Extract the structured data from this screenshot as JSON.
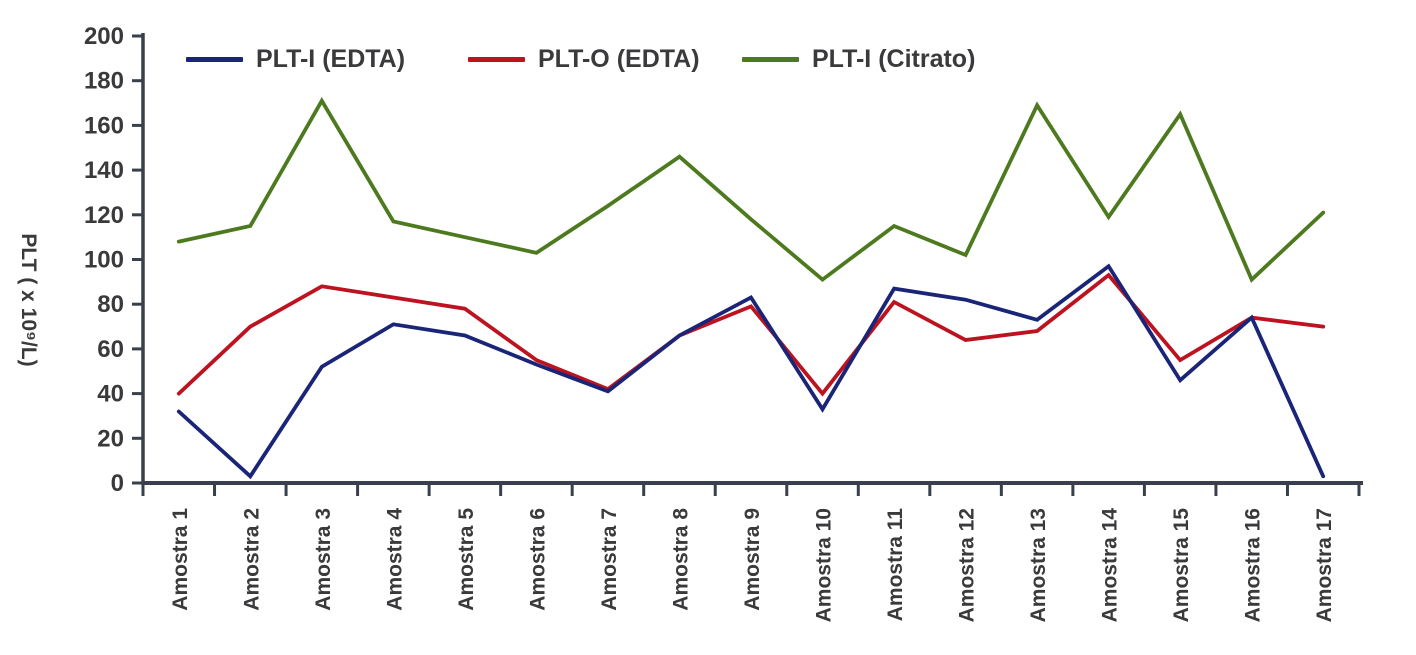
{
  "chart_data": {
    "type": "line",
    "title": "",
    "xlabel": "",
    "ylabel": "PLT ( x 10⁹/L)",
    "ylim": [
      0,
      200
    ],
    "ytick_step": 20,
    "grid": false,
    "legend_position": "top",
    "categories": [
      "Amostra 1",
      "Amostra 2",
      "Amostra 3",
      "Amostra 4",
      "Amostra 5",
      "Amostra 6",
      "Amostra 7",
      "Amostra 8",
      "Amostra 9",
      "Amostra 10",
      "Amostra 11",
      "Amostra 12",
      "Amostra 13",
      "Amostra 14",
      "Amostra 15",
      "Amostra 16",
      "Amostra 17"
    ],
    "series": [
      {
        "name": "PLT-I (EDTA)",
        "color": "#1b2577",
        "zorder": 3,
        "values": [
          32,
          3,
          52,
          71,
          66,
          53,
          41,
          66,
          83,
          33,
          87,
          82,
          73,
          97,
          46,
          74,
          3
        ]
      },
      {
        "name": "PLT-O (EDTA)",
        "color": "#bd1320",
        "zorder": 2,
        "values": [
          40,
          70,
          88,
          83,
          78,
          55,
          42,
          66,
          79,
          40,
          81,
          64,
          68,
          93,
          55,
          74,
          70
        ]
      },
      {
        "name": "PLT-I (Citrato)",
        "color": "#4d7a1f",
        "zorder": 1,
        "values": [
          108,
          115,
          171,
          117,
          110,
          103,
          124,
          146,
          118,
          91,
          115,
          102,
          169,
          119,
          165,
          91,
          121
        ]
      }
    ],
    "colors": {
      "axis": "#3a3f4c",
      "text": "#3a3a3c"
    }
  }
}
